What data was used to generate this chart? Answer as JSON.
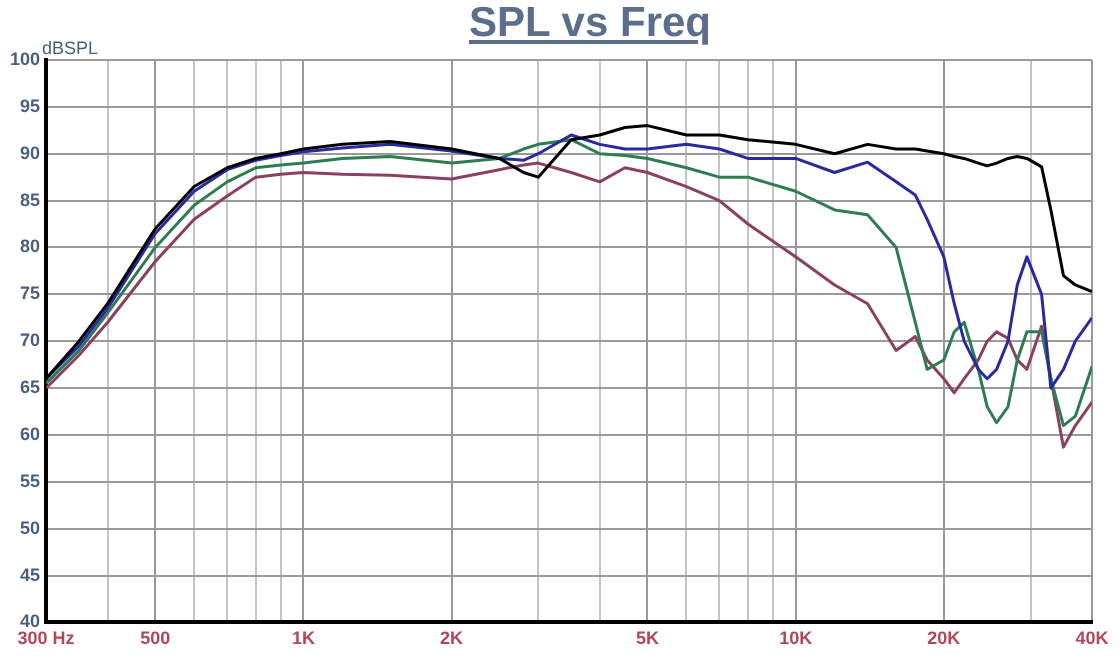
{
  "chart_data": {
    "type": "line",
    "title": "SPL vs Freq",
    "ylabel": "dBSPL",
    "log": "x",
    "grid": true,
    "legend": false,
    "marker": "none",
    "line_style": "solid",
    "x": [
      300,
      350,
      400,
      500,
      600,
      700,
      800,
      900,
      1000,
      1200,
      1500,
      2000,
      2500,
      2800,
      3000,
      3500,
      4000,
      4500,
      5000,
      6000,
      7000,
      8000,
      10000,
      12000,
      14000,
      16000,
      17500,
      18500,
      20000,
      21000,
      22000,
      23500,
      24500,
      25600,
      27000,
      28200,
      29500,
      31600,
      33000,
      35000,
      37000,
      40000
    ],
    "series": [
      {
        "color": "#000000",
        "values": [
          66,
          70,
          74,
          82,
          86.5,
          88.5,
          89.5,
          90,
          90.5,
          91,
          91.3,
          90.5,
          89.5,
          88,
          87.5,
          91.5,
          92,
          92.8,
          93,
          92,
          92,
          91.5,
          91,
          90,
          91,
          90.5,
          90.5,
          90.3,
          90,
          89.7,
          89.5,
          89,
          88.7,
          89,
          89.5,
          89.7,
          89.5,
          88.6,
          84,
          77,
          76,
          75.3
        ]
      },
      {
        "color": "#2a2aa0",
        "values": [
          66,
          69.5,
          73.5,
          81.5,
          86,
          88.3,
          89.3,
          89.8,
          90.2,
          90.6,
          91,
          90.3,
          89.5,
          89.3,
          90,
          92,
          91,
          90.5,
          90.5,
          91,
          90.5,
          89.5,
          89.5,
          88,
          89.1,
          87,
          85.6,
          83,
          79,
          74,
          70,
          67,
          66,
          67,
          70,
          76,
          79,
          75,
          65,
          67,
          70,
          72.5
        ]
      },
      {
        "color": "#2e7d52",
        "values": [
          65.5,
          69,
          73,
          80,
          84.5,
          87,
          88.5,
          88.8,
          89,
          89.5,
          89.7,
          89,
          89.5,
          90.5,
          91,
          91.5,
          90,
          89.8,
          89.5,
          88.5,
          87.5,
          87.5,
          86,
          84,
          83.5,
          80,
          72,
          67,
          68,
          71,
          72,
          67,
          63,
          61.3,
          63,
          68,
          71,
          71,
          66,
          61,
          62,
          67.3
        ]
      },
      {
        "color": "#8b4060",
        "values": [
          65,
          68.5,
          72,
          78.5,
          83,
          85.5,
          87.5,
          87.8,
          88,
          87.8,
          87.7,
          87.3,
          88.3,
          88.8,
          89,
          88,
          87,
          88.5,
          88,
          86.5,
          85,
          82.5,
          79,
          76,
          74,
          69,
          70.5,
          68,
          66,
          64.5,
          66,
          68,
          70,
          71,
          70.3,
          68,
          67,
          71.6,
          66,
          58.7,
          61,
          63.5
        ]
      }
    ],
    "xlim": [
      300,
      40000
    ],
    "xticks": [
      {
        "value": 300,
        "label": "300 Hz"
      },
      {
        "value": 400,
        "label": null
      },
      500,
      {
        "value": 600,
        "label": null
      },
      {
        "value": 700,
        "label": null
      },
      {
        "value": 800,
        "label": null
      },
      {
        "value": 900,
        "label": null
      },
      {
        "value": 1000,
        "label": "1K"
      },
      {
        "value": 2000,
        "label": "2K"
      },
      {
        "value": 3000,
        "label": null
      },
      {
        "value": 4000,
        "label": null
      },
      {
        "value": 5000,
        "label": "5K"
      },
      {
        "value": 6000,
        "label": null
      },
      {
        "value": 7000,
        "label": null
      },
      {
        "value": 8000,
        "label": null
      },
      {
        "value": 9000,
        "label": null
      },
      {
        "value": 10000,
        "label": "10K"
      },
      {
        "value": 20000,
        "label": "20K"
      },
      {
        "value": 30000,
        "label": null
      },
      {
        "value": 40000,
        "label": "40K"
      }
    ],
    "ylim": [
      40,
      100
    ],
    "yticks": [
      40,
      45,
      50,
      55,
      60,
      65,
      70,
      75,
      80,
      85,
      90,
      95,
      100
    ]
  }
}
